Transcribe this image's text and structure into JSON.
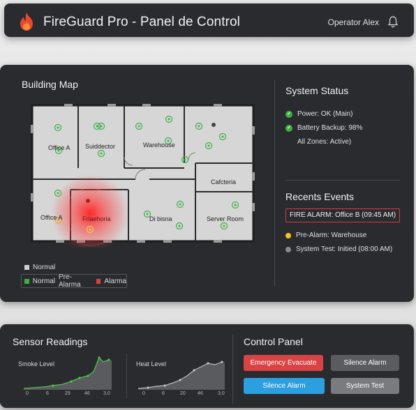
{
  "header": {
    "title": "FireGuard Pro - Panel de Control",
    "operator": "Operator Alex",
    "logo_icon": "flame-icon",
    "bell_icon": "bell-icon"
  },
  "map": {
    "title": "Building Map",
    "rooms": {
      "office_a": "Office A",
      "suiddector": "Suiddector",
      "warehouse": "Warehouse",
      "cafeteria": "Cafcteria",
      "office_a2": "Office A",
      "office_b": "Friaehoria",
      "dibisna": "Di bisna",
      "server_room": "Server Room"
    },
    "legend": {
      "normal": "Normal",
      "normal2": "Normal",
      "pre_alarm": "Pre-Alarma",
      "alarm": "Alarma"
    }
  },
  "status": {
    "title": "System Status",
    "power": "Power: OK (Main)",
    "battery": "Battery Backup: 98%",
    "zones": "All Zones: Active)"
  },
  "events": {
    "title": "Recents Events",
    "fire_alarm": "FIRE ALARM: Office B (09:45 AM)",
    "pre_alarm": "Pre-Alarm: Warehouse",
    "system_test": "System Test: Initied (08:00 AM)"
  },
  "sensors": {
    "title": "Sensor Readings",
    "smoke_label": "Smoke Level",
    "heat_label": "Heat Level",
    "smoke_ticks": [
      "0",
      "6",
      "29",
      "46",
      "3,0"
    ],
    "heat_ticks": [
      "0",
      "6",
      "20",
      "46",
      "3,0"
    ]
  },
  "control": {
    "title": "Control Panel",
    "evacuate": "Emergency Evacuate",
    "silence1": "Silence Alarm",
    "silence2": "Silence Alarm",
    "test": "System Test"
  },
  "colors": {
    "normal": "#3cb043",
    "pre_alarm": "#f2c12e",
    "alarm": "#d94343",
    "accent_blue": "#2c9fe0"
  }
}
